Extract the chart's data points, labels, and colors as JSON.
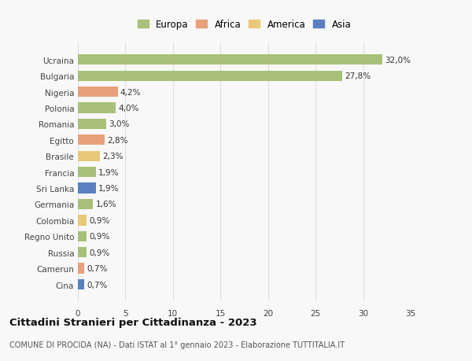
{
  "categories": [
    "Cina",
    "Camerun",
    "Russia",
    "Regno Unito",
    "Colombia",
    "Germania",
    "Sri Lanka",
    "Francia",
    "Brasile",
    "Egitto",
    "Romania",
    "Polonia",
    "Nigeria",
    "Bulgaria",
    "Ucraina"
  ],
  "values": [
    0.7,
    0.7,
    0.9,
    0.9,
    0.9,
    1.6,
    1.9,
    1.9,
    2.3,
    2.8,
    3.0,
    4.0,
    4.2,
    27.8,
    32.0
  ],
  "labels": [
    "0,7%",
    "0,7%",
    "0,9%",
    "0,9%",
    "0,9%",
    "1,6%",
    "1,9%",
    "1,9%",
    "2,3%",
    "2,8%",
    "3,0%",
    "4,0%",
    "4,2%",
    "27,8%",
    "32,0%"
  ],
  "colors": [
    "#5b7fbf",
    "#e8a07a",
    "#a8c07a",
    "#a8c07a",
    "#e8c97a",
    "#a8c07a",
    "#5b7fbf",
    "#a8c07a",
    "#e8c97a",
    "#e8a07a",
    "#a8c07a",
    "#a8c07a",
    "#e8a07a",
    "#a8c07a",
    "#a8c07a"
  ],
  "legend_labels": [
    "Europa",
    "Africa",
    "America",
    "Asia"
  ],
  "legend_colors": [
    "#a8c07a",
    "#e8a07a",
    "#e8c97a",
    "#5b7fbf"
  ],
  "title": "Cittadini Stranieri per Cittadinanza - 2023",
  "subtitle": "COMUNE DI PROCIDA (NA) - Dati ISTAT al 1° gennaio 2023 - Elaborazione TUTTITALIA.IT",
  "xlim": [
    0,
    35
  ],
  "xticks": [
    0,
    5,
    10,
    15,
    20,
    25,
    30,
    35
  ],
  "background_color": "#f8f8f8",
  "grid_color": "#e0e0e0"
}
